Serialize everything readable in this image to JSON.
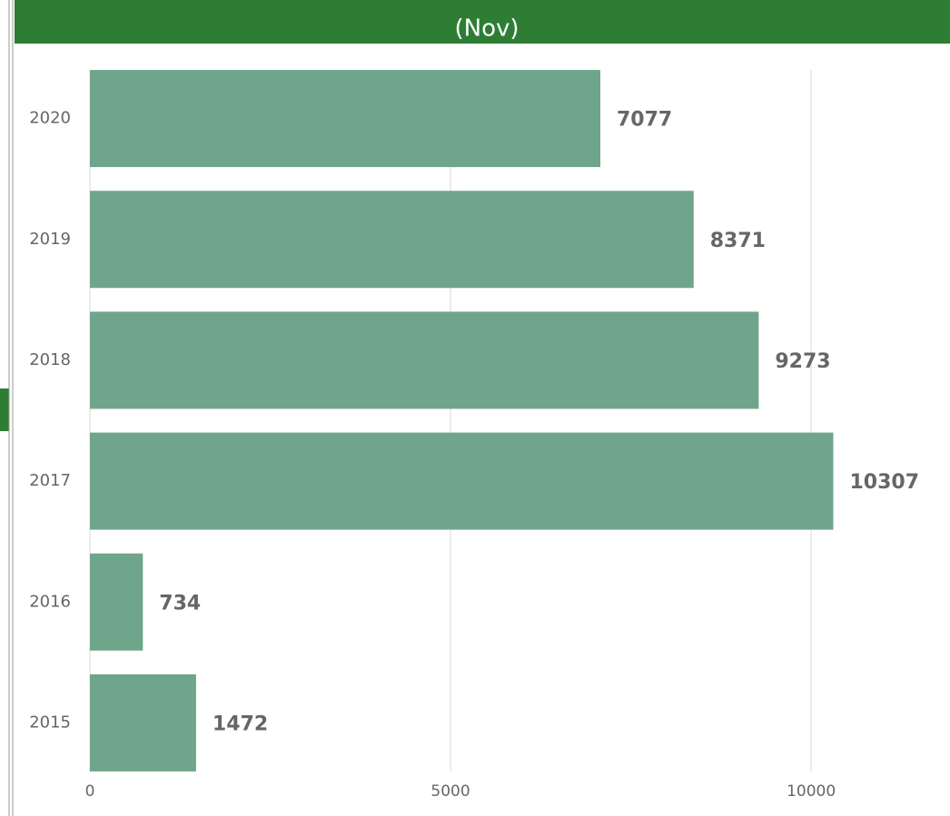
{
  "chart_data": {
    "type": "bar",
    "orientation": "horizontal",
    "title": "(Nov)",
    "categories": [
      "2020",
      "2019",
      "2018",
      "2017",
      "2016",
      "2015"
    ],
    "values": [
      7077,
      8371,
      9273,
      10307,
      734,
      1472
    ],
    "color": "#6fa58b",
    "xlim": [
      0,
      11900
    ],
    "xticks": [
      0,
      5000,
      10000
    ],
    "grid": true
  }
}
